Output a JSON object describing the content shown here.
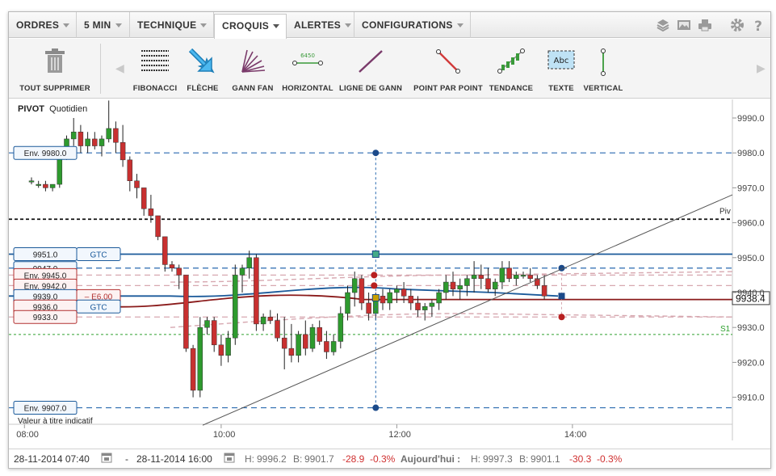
{
  "menu": {
    "items": [
      {
        "label": "ORDRES",
        "caret": true
      },
      {
        "label": "5 MIN",
        "caret": true
      },
      {
        "label": "TECHNIQUE",
        "caret": true
      },
      {
        "label": "CROQUIS",
        "caret": true,
        "active": true
      },
      {
        "label": "ALERTES",
        "caret": true
      },
      {
        "label": "CONFIGURATIONS",
        "caret": true
      }
    ]
  },
  "top_icons": [
    "layers-icon",
    "image-icon",
    "print-icon",
    "gear-icon",
    "help-icon"
  ],
  "toolbar": {
    "delete_all": "TOUT SUPPRIMER",
    "tools": [
      {
        "label": "FIBONACCI",
        "icon": "fibonacci-icon"
      },
      {
        "label": "FLÈCHE",
        "icon": "arrow-icon"
      },
      {
        "label": "GANN FAN",
        "icon": "gann-fan-icon"
      },
      {
        "label": "HORIZONTAL",
        "icon": "horizontal-line-icon",
        "icon_text": "6450"
      },
      {
        "label": "LIGNE DE GANN",
        "icon": "gann-line-icon"
      },
      {
        "label": "POINT PAR POINT",
        "icon": "point-to-point-icon"
      },
      {
        "label": "TENDANCE",
        "icon": "trend-icon"
      },
      {
        "label": "TEXTE",
        "icon": "text-icon",
        "icon_text": "Abc"
      },
      {
        "label": "VERTICAL",
        "icon": "vertical-line-icon"
      }
    ]
  },
  "chart_data": {
    "type": "candlestick",
    "title": "PIVOT",
    "subtitle": "Quotidien",
    "note": "Valeur à titre indicatif",
    "x_ticks": [
      "08:00",
      "10:00",
      "12:00",
      "14:00"
    ],
    "y_ticks": [
      "9990.0",
      "9980.0",
      "9970.0",
      "9960.0",
      "9950.0",
      "9940.0",
      "9930.0",
      "9920.0",
      "9910.0"
    ],
    "ylim": [
      9902,
      9996
    ],
    "current_price": "9938.4",
    "pivot_label": "Piv",
    "pivot_level": 9961,
    "s1_label": "S1",
    "s1_level": 9928,
    "colors": {
      "up": "#2e9a2e",
      "down": "#c83030",
      "blue_line": "#1b5a9a",
      "red_line": "#8a1a1a",
      "pivot": "#111111",
      "s1": "#2ea02e",
      "envelope": "#2a6ab0"
    },
    "candles": [
      [
        9972,
        9973,
        9971,
        9972
      ],
      [
        9971,
        9972,
        9970,
        9971
      ],
      [
        9971,
        9972,
        9969,
        9970
      ],
      [
        9970,
        9971,
        9969,
        9971
      ],
      [
        9971,
        9980,
        9970,
        9979
      ],
      [
        9979,
        9985,
        9978,
        9984
      ],
      [
        9984,
        9990,
        9982,
        9986
      ],
      [
        9986,
        9988,
        9980,
        9982
      ],
      [
        9982,
        9986,
        9980,
        9984
      ],
      [
        9984,
        9986,
        9981,
        9982
      ],
      [
        9982,
        9985,
        9979,
        9984
      ],
      [
        9984,
        9995,
        9983,
        9987
      ],
      [
        9987,
        9989,
        9980,
        9983
      ],
      [
        9983,
        9988,
        9976,
        9978
      ],
      [
        9978,
        9979,
        9969,
        9972
      ],
      [
        9972,
        9974,
        9967,
        9970
      ],
      [
        9970,
        9970,
        9962,
        9964
      ],
      [
        9964,
        9968,
        9960,
        9962
      ],
      [
        9962,
        9962,
        9955,
        9956
      ],
      [
        9956,
        9956,
        9946,
        9948
      ],
      [
        9948,
        9949,
        9946,
        9947
      ],
      [
        9947,
        9948,
        9941,
        9945
      ],
      [
        9945,
        9945,
        9923,
        9924
      ],
      [
        9924,
        9925,
        9910,
        9912
      ],
      [
        9912,
        9933,
        9910,
        9930
      ],
      [
        9930,
        9933,
        9928,
        9932
      ],
      [
        9932,
        9933,
        9923,
        9925
      ],
      [
        9925,
        9928,
        9919,
        9922
      ],
      [
        9922,
        9929,
        9920,
        9927
      ],
      [
        9927,
        9948,
        9925,
        9945
      ],
      [
        9945,
        9948,
        9940,
        9947
      ],
      [
        9947,
        9952,
        9944,
        9950
      ],
      [
        9950,
        9951,
        9929,
        9931
      ],
      [
        9931,
        9934,
        9929,
        9933
      ],
      [
        9933,
        9935,
        9931,
        9932
      ],
      [
        9932,
        9934,
        9926,
        9927
      ],
      [
        9927,
        9933,
        9918,
        9924
      ],
      [
        9924,
        9931,
        9920,
        9922
      ],
      [
        9922,
        9929,
        9920,
        9928
      ],
      [
        9928,
        9932,
        9922,
        9924
      ],
      [
        9924,
        9931,
        9923,
        9930
      ],
      [
        9930,
        9932,
        9925,
        9926
      ],
      [
        9926,
        9929,
        9921,
        9923
      ],
      [
        9923,
        9928,
        9922,
        9926
      ],
      [
        9926,
        9936,
        9924,
        9934
      ],
      [
        9934,
        9942,
        9932,
        9940
      ],
      [
        9940,
        9946,
        9936,
        9944
      ],
      [
        9944,
        9945,
        9935,
        9937
      ],
      [
        9937,
        9940,
        9932,
        9934
      ],
      [
        9934,
        9940,
        9932,
        9939
      ],
      [
        9939,
        9941,
        9935,
        9937
      ],
      [
        9937,
        9941,
        9935,
        9940
      ],
      [
        9940,
        9942,
        9937,
        9941
      ],
      [
        9941,
        9943,
        9937,
        9939
      ],
      [
        9939,
        9941,
        9935,
        9937
      ],
      [
        9937,
        9939,
        9933,
        9935
      ],
      [
        9935,
        9937,
        9932,
        9936
      ],
      [
        9936,
        9938,
        9933,
        9937
      ],
      [
        9937,
        9941,
        9935,
        9940
      ],
      [
        9940,
        9945,
        9938,
        9943
      ],
      [
        9943,
        9946,
        9939,
        9941
      ],
      [
        9941,
        9944,
        9938,
        9942
      ],
      [
        9942,
        9945,
        9939,
        9944
      ],
      [
        9944,
        9949,
        9940,
        9945
      ],
      [
        9945,
        9948,
        9941,
        9944
      ],
      [
        9944,
        9947,
        9940,
        9941
      ],
      [
        9941,
        9944,
        9939,
        9943
      ],
      [
        9943,
        9949,
        9941,
        9947
      ],
      [
        9947,
        9949,
        9943,
        9944
      ],
      [
        9944,
        9946,
        9942,
        9945
      ],
      [
        9945,
        9946,
        9944,
        9945
      ],
      [
        9945,
        9947,
        9943,
        9944
      ],
      [
        9944,
        9945,
        9941,
        9942
      ],
      [
        9942,
        9945,
        9938,
        9939
      ]
    ],
    "order_labels": [
      {
        "text": "Env. 9980.0",
        "kind": "blue"
      },
      {
        "text": "9951.0",
        "kind": "blue",
        "tag": "GTC"
      },
      {
        "text": "9947.0",
        "kind": "blue"
      },
      {
        "text": "Env. 9945.0",
        "kind": "red"
      },
      {
        "text": "Env. 9942.0",
        "kind": "red"
      },
      {
        "text": "9939.0",
        "kind": "blue",
        "tag": "– E6.00"
      },
      {
        "text": "9936.0",
        "kind": "red",
        "tag": "GTC"
      },
      {
        "text": "9933.0",
        "kind": "red"
      },
      {
        "text": "Env. 9907.0",
        "kind": "blue"
      }
    ]
  },
  "status": {
    "start_date": "28-11-2014 07:40",
    "separator": "-",
    "end_date": "28-11-2014 16:00",
    "high_label": "H:",
    "high": "9996.2",
    "low_label": "B:",
    "low": "9901.7",
    "change": "-28.9",
    "change_pct": "-0.3%",
    "today_label": "Aujourd'hui :",
    "today_high_label": "H:",
    "today_high": "9997.3",
    "today_low_label": "B:",
    "today_low": "9901.1",
    "today_change": "-30.3",
    "today_change_pct": "-0.3%"
  }
}
